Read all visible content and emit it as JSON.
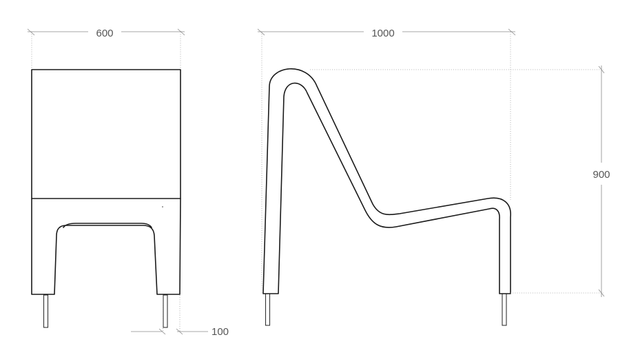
{
  "dimensions": {
    "front_width": "600",
    "side_depth": "1000",
    "height": "900",
    "leg_width": "100"
  }
}
